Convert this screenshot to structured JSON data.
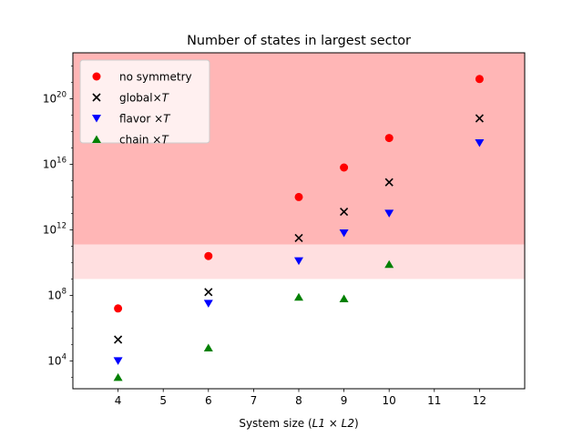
{
  "chart_data": {
    "type": "scatter",
    "title": "Number of states in largest sector",
    "xlabel_main": "System size (",
    "xlabel_math": "L1 × L2",
    "xlabel_close": ")",
    "y_scale": "log",
    "xlim": [
      3,
      13
    ],
    "ylim_exp": [
      2.3,
      22.8
    ],
    "x_ticks": [
      4,
      5,
      6,
      7,
      8,
      9,
      10,
      11,
      12
    ],
    "x_tick_labels": [
      "4",
      "5",
      "6",
      "7",
      "8",
      "9",
      "10",
      "11",
      "12"
    ],
    "y_ticks_exp": [
      4,
      8,
      12,
      16,
      20
    ],
    "y_tick_base": "10",
    "bands": [
      {
        "from_exp": 11.1,
        "to_exp": 22.8,
        "color": "#ffb6b6"
      },
      {
        "from_exp": 9.0,
        "to_exp": 11.1,
        "color": "#ffdfe0"
      }
    ],
    "legend_position": "upper-left",
    "series": [
      {
        "name": "no symmetry",
        "marker": "circle",
        "color": "#ff0000",
        "points": [
          {
            "x": 4,
            "y_exp": 7.2
          },
          {
            "x": 6,
            "y_exp": 10.4
          },
          {
            "x": 8,
            "y_exp": 14.0
          },
          {
            "x": 9,
            "y_exp": 15.8
          },
          {
            "x": 10,
            "y_exp": 17.6
          },
          {
            "x": 12,
            "y_exp": 21.2
          }
        ]
      },
      {
        "name": "global×T",
        "marker": "x",
        "color": "#000000",
        "points": [
          {
            "x": 4,
            "y_exp": 5.3
          },
          {
            "x": 6,
            "y_exp": 8.2
          },
          {
            "x": 8,
            "y_exp": 11.5
          },
          {
            "x": 9,
            "y_exp": 13.1
          },
          {
            "x": 10,
            "y_exp": 14.9
          },
          {
            "x": 12,
            "y_exp": 18.8
          }
        ]
      },
      {
        "name": "flavor ×T",
        "marker": "triangle-down",
        "color": "#0000ff",
        "points": [
          {
            "x": 4,
            "y_exp": 4.0
          },
          {
            "x": 6,
            "y_exp": 7.5
          },
          {
            "x": 8,
            "y_exp": 10.1
          },
          {
            "x": 9,
            "y_exp": 11.8
          },
          {
            "x": 10,
            "y_exp": 13.0
          },
          {
            "x": 12,
            "y_exp": 17.3
          }
        ]
      },
      {
        "name": "chain ×T",
        "marker": "triangle-up",
        "color": "#008000",
        "points": [
          {
            "x": 4,
            "y_exp": 3.0
          },
          {
            "x": 6,
            "y_exp": 4.8
          },
          {
            "x": 8,
            "y_exp": 7.9
          },
          {
            "x": 9,
            "y_exp": 7.8
          },
          {
            "x": 10,
            "y_exp": 9.9
          }
        ]
      }
    ]
  }
}
